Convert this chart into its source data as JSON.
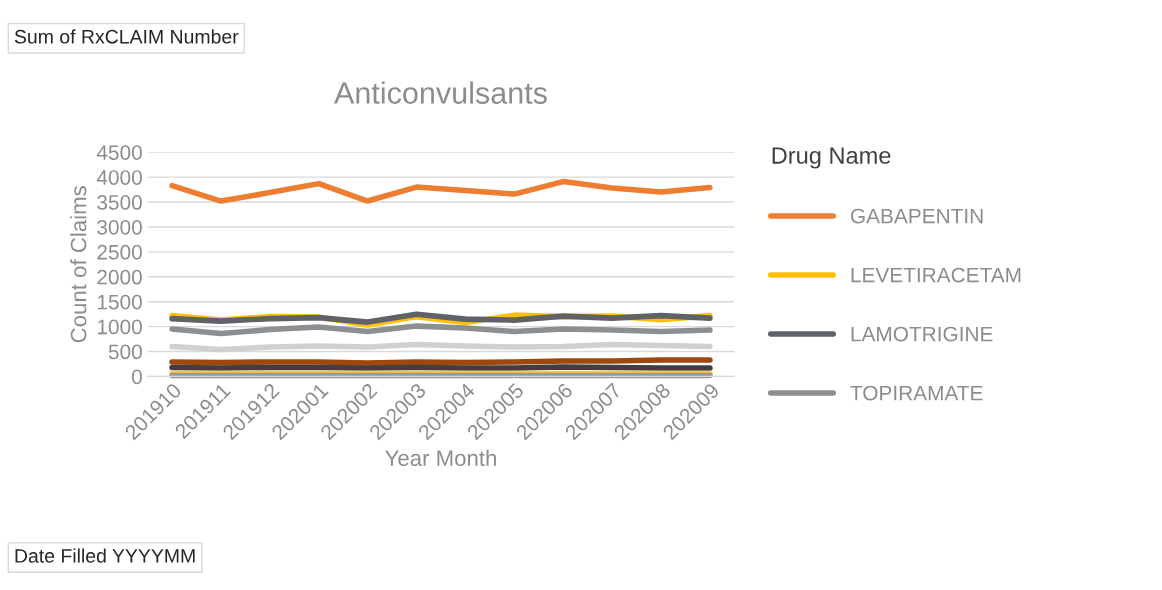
{
  "chart_data": {
    "type": "line",
    "title": "Anticonvulsants",
    "xlabel": "Year Month",
    "ylabel": "Count of Claims",
    "legend_title": "Drug Name",
    "annotations": [
      "Sum of RxCLAIM Number",
      "Date Filled YYYYMM"
    ],
    "categories": [
      "201910",
      "201911",
      "201912",
      "202001",
      "202002",
      "202003",
      "202004",
      "202005",
      "202006",
      "202007",
      "202008",
      "202009"
    ],
    "series": [
      {
        "name": "GABAPENTIN",
        "color": "#ed7d31",
        "values": [
          3830,
          3520,
          3690,
          3870,
          3520,
          3800,
          3730,
          3660,
          3910,
          3780,
          3700,
          3790
        ]
      },
      {
        "name": "LEVETIRACETAM",
        "color": "#ffc000",
        "values": [
          1220,
          1130,
          1200,
          1190,
          1030,
          1200,
          1080,
          1230,
          1200,
          1210,
          1140,
          1220
        ]
      },
      {
        "name": "LAMOTRIGINE",
        "color": "#5f6368",
        "values": [
          1160,
          1110,
          1160,
          1180,
          1090,
          1250,
          1150,
          1130,
          1210,
          1170,
          1220,
          1170
        ]
      },
      {
        "name": "TOPIRAMATE",
        "color": "#8c8f92",
        "values": [
          950,
          860,
          940,
          990,
          900,
          1010,
          970,
          900,
          950,
          930,
          900,
          930
        ]
      },
      {
        "color": "#d0d0d0",
        "values": [
          600,
          540,
          590,
          610,
          590,
          640,
          610,
          590,
          600,
          640,
          620,
          600
        ]
      },
      {
        "color": "#9e480e",
        "values": [
          290,
          280,
          290,
          290,
          270,
          290,
          280,
          290,
          310,
          310,
          330,
          330
        ]
      },
      {
        "color": "#3f3f3f",
        "values": [
          180,
          170,
          180,
          180,
          170,
          180,
          170,
          170,
          190,
          180,
          170,
          170
        ]
      },
      {
        "color": "#ffc740",
        "values": [
          60,
          60,
          60,
          60,
          60,
          60,
          60,
          60,
          60,
          60,
          60,
          60
        ]
      },
      {
        "color": "#999999",
        "values": [
          20,
          20,
          20,
          20,
          20,
          20,
          20,
          20,
          20,
          20,
          20,
          20
        ]
      }
    ],
    "ylim": [
      0,
      4500
    ],
    "yticks": [
      0,
      500,
      1000,
      1500,
      2000,
      2500,
      3000,
      3500,
      4000,
      4500
    ],
    "grid": "y",
    "legend": "right",
    "marker": "none",
    "line_style": "solid"
  }
}
